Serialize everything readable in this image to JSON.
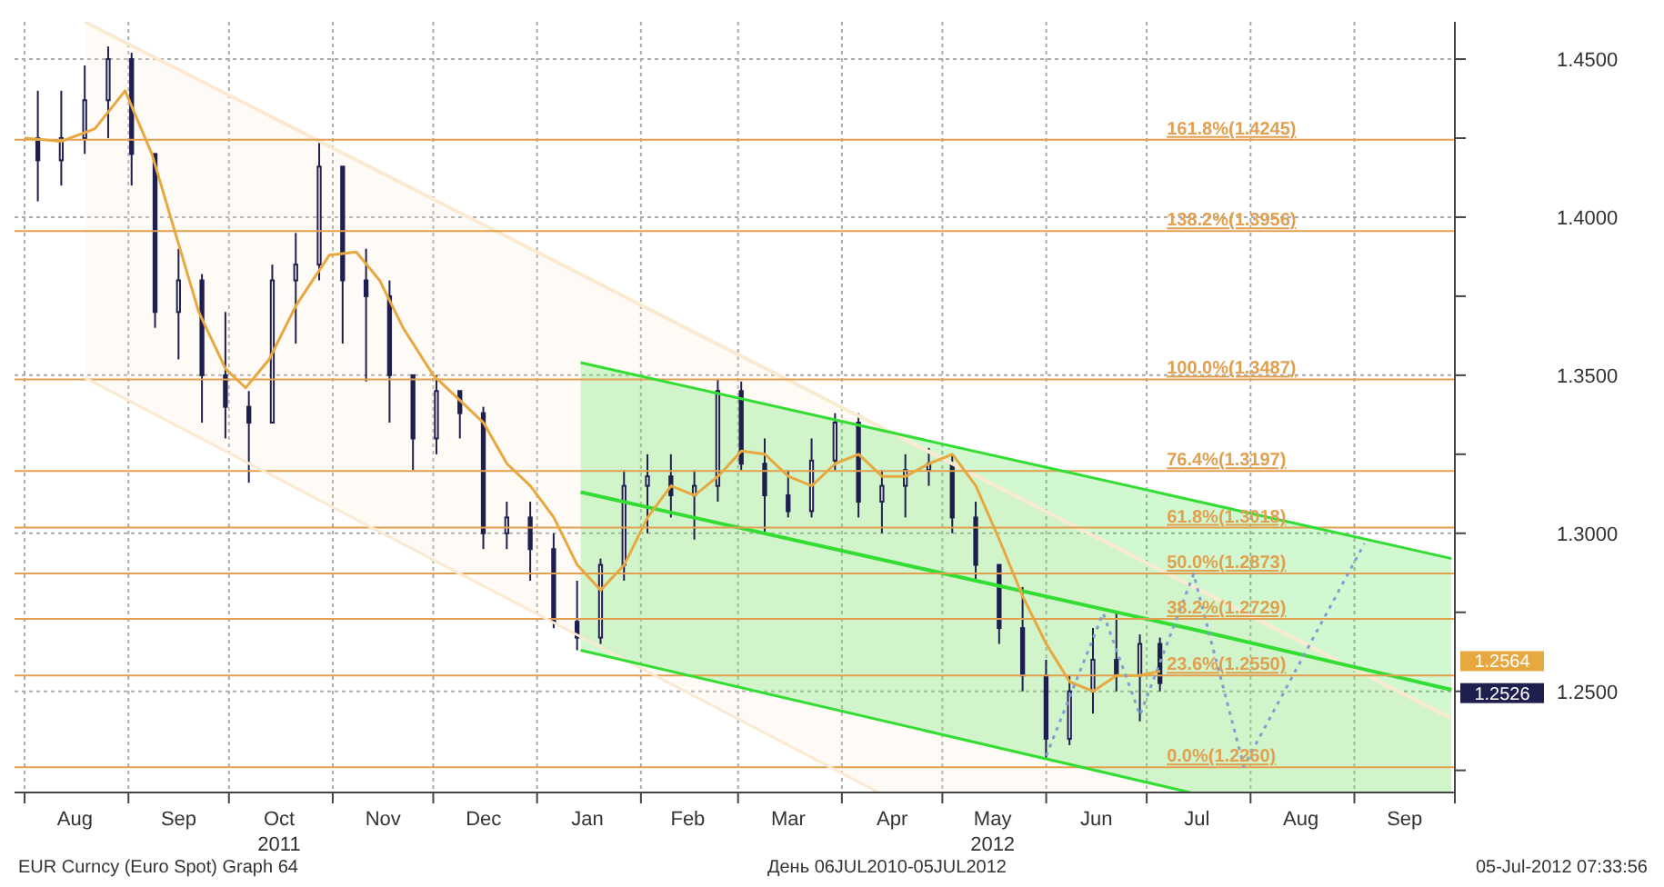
{
  "chart_data": {
    "type": "candlestick",
    "color": "#1f1f4f",
    "x": [
      "2011-08-05",
      "2011-08-12",
      "2011-08-19",
      "2011-08-26",
      "2011-09-02",
      "2011-09-09",
      "2011-09-16",
      "2011-09-23",
      "2011-09-30",
      "2011-10-07",
      "2011-10-14",
      "2011-10-21",
      "2011-10-28",
      "2011-11-04",
      "2011-11-11",
      "2011-11-18",
      "2011-11-25",
      "2011-12-02",
      "2011-12-09",
      "2011-12-16",
      "2011-12-23",
      "2011-12-30",
      "2012-01-06",
      "2012-01-13",
      "2012-01-20",
      "2012-01-27",
      "2012-02-03",
      "2012-02-10",
      "2012-02-17",
      "2012-02-24",
      "2012-03-02",
      "2012-03-09",
      "2012-03-16",
      "2012-03-23",
      "2012-03-30",
      "2012-04-06",
      "2012-04-13",
      "2012-04-20",
      "2012-04-27",
      "2012-05-04",
      "2012-05-11",
      "2012-05-18",
      "2012-05-25",
      "2012-06-01",
      "2012-06-08",
      "2012-06-15",
      "2012-06-22",
      "2012-06-29",
      "2012-07-05"
    ],
    "ohlc": [
      [
        1.425,
        1.44,
        1.405,
        1.418
      ],
      [
        1.418,
        1.44,
        1.41,
        1.425
      ],
      [
        1.425,
        1.448,
        1.42,
        1.437
      ],
      [
        1.437,
        1.454,
        1.425,
        1.45
      ],
      [
        1.45,
        1.452,
        1.41,
        1.42
      ],
      [
        1.42,
        1.42,
        1.365,
        1.37
      ],
      [
        1.37,
        1.39,
        1.355,
        1.38
      ],
      [
        1.38,
        1.382,
        1.335,
        1.35
      ],
      [
        1.35,
        1.37,
        1.33,
        1.34
      ],
      [
        1.34,
        1.345,
        1.316,
        1.335
      ],
      [
        1.335,
        1.385,
        1.335,
        1.38
      ],
      [
        1.38,
        1.395,
        1.36,
        1.385
      ],
      [
        1.385,
        1.424,
        1.38,
        1.416
      ],
      [
        1.416,
        1.416,
        1.36,
        1.38
      ],
      [
        1.38,
        1.39,
        1.348,
        1.375
      ],
      [
        1.375,
        1.38,
        1.335,
        1.35
      ],
      [
        1.35,
        1.35,
        1.32,
        1.33
      ],
      [
        1.33,
        1.35,
        1.325,
        1.345
      ],
      [
        1.345,
        1.345,
        1.33,
        1.338
      ],
      [
        1.338,
        1.34,
        1.295,
        1.3
      ],
      [
        1.3,
        1.31,
        1.295,
        1.305
      ],
      [
        1.305,
        1.31,
        1.285,
        1.295
      ],
      [
        1.295,
        1.3,
        1.27,
        1.272
      ],
      [
        1.272,
        1.285,
        1.263,
        1.267
      ],
      [
        1.267,
        1.292,
        1.265,
        1.29
      ],
      [
        1.29,
        1.32,
        1.285,
        1.315
      ],
      [
        1.315,
        1.325,
        1.3,
        1.318
      ],
      [
        1.318,
        1.325,
        1.305,
        1.312
      ],
      [
        1.312,
        1.32,
        1.298,
        1.315
      ],
      [
        1.315,
        1.3487,
        1.31,
        1.345
      ],
      [
        1.345,
        1.348,
        1.32,
        1.322
      ],
      [
        1.322,
        1.33,
        1.3,
        1.312
      ],
      [
        1.312,
        1.32,
        1.305,
        1.307
      ],
      [
        1.307,
        1.33,
        1.305,
        1.323
      ],
      [
        1.323,
        1.338,
        1.32,
        1.335
      ],
      [
        1.335,
        1.338,
        1.305,
        1.31
      ],
      [
        1.31,
        1.32,
        1.3,
        1.315
      ],
      [
        1.315,
        1.325,
        1.305,
        1.32
      ],
      [
        1.32,
        1.327,
        1.315,
        1.322
      ],
      [
        1.322,
        1.325,
        1.3,
        1.305
      ],
      [
        1.305,
        1.31,
        1.285,
        1.29
      ],
      [
        1.29,
        1.29,
        1.265,
        1.27
      ],
      [
        1.27,
        1.283,
        1.25,
        1.255
      ],
      [
        1.255,
        1.26,
        1.2286,
        1.235
      ],
      [
        1.235,
        1.255,
        1.233,
        1.25
      ],
      [
        1.25,
        1.27,
        1.243,
        1.26
      ],
      [
        1.26,
        1.275,
        1.25,
        1.255
      ],
      [
        1.255,
        1.268,
        1.2405,
        1.265
      ],
      [
        1.265,
        1.267,
        1.25,
        1.2526
      ]
    ],
    "series": [
      {
        "type": "line",
        "color": "#fbead2",
        "x": [
          "2011-08-19",
          "2012-04-12",
          "2012-09-30"
        ],
        "values": [
          1.4618,
          1.3339,
          1.2414
        ],
        "lower": [
          1.3492,
          1.218,
          1.218
        ],
        "upper": [
          1.4618,
          1.3339,
          1.2414
        ]
      },
      {
        "type": "line",
        "color": "#fbead2",
        "x": [
          "2011-08-19",
          "2012-04-12"
        ],
        "values": [
          1.3492,
          1.218
        ]
      },
      {
        "type": "line",
        "color": "#33dd33",
        "x": [
          "2012-01-14",
          "2012-07-14",
          "2012-09-30"
        ],
        "values": [
          1.313,
          1.2698,
          1.2505
        ],
        "lower": [
          1.263,
          1.218,
          1.218
        ],
        "upper": [
          1.354,
          1.3108,
          1.292
        ]
      },
      {
        "type": "line",
        "color": "#33dd33",
        "x": [
          "2012-01-14",
          "2012-09-30"
        ],
        "values": [
          1.354,
          1.292
        ]
      },
      {
        "type": "line",
        "color": "#33dd33",
        "x": [
          "2012-01-14",
          "2012-07-14"
        ],
        "values": [
          1.263,
          1.218
        ]
      },
      {
        "type": "line",
        "color": "#e8a840",
        "x": [
          "2011-08-01",
          "2011-08-12",
          "2011-08-22",
          "2011-08-31",
          "2011-09-08",
          "2011-09-15",
          "2011-09-22",
          "2011-09-30",
          "2011-10-06",
          "2011-10-13",
          "2011-10-21",
          "2011-10-31",
          "2011-11-08",
          "2011-11-15",
          "2011-11-22",
          "2011-12-01",
          "2011-12-09",
          "2011-12-16",
          "2011-12-23",
          "2011-12-30",
          "2012-01-06",
          "2012-01-13",
          "2012-01-20",
          "2012-01-27",
          "2012-02-03",
          "2012-02-10",
          "2012-02-17",
          "2012-02-24",
          "2012-03-02",
          "2012-03-09",
          "2012-03-16",
          "2012-03-23",
          "2012-03-30",
          "2012-04-06",
          "2012-04-13",
          "2012-04-20",
          "2012-04-27",
          "2012-05-04",
          "2012-05-11",
          "2012-05-18",
          "2012-05-25",
          "2012-06-01",
          "2012-06-08",
          "2012-06-15",
          "2012-06-22",
          "2012-06-29",
          "2012-07-05"
        ],
        "values": [
          1.425,
          1.424,
          1.428,
          1.44,
          1.42,
          1.395,
          1.37,
          1.352,
          1.346,
          1.355,
          1.372,
          1.388,
          1.389,
          1.38,
          1.365,
          1.35,
          1.342,
          1.335,
          1.322,
          1.315,
          1.305,
          1.29,
          1.282,
          1.29,
          1.305,
          1.315,
          1.312,
          1.318,
          1.326,
          1.325,
          1.318,
          1.315,
          1.322,
          1.325,
          1.318,
          1.318,
          1.322,
          1.325,
          1.315,
          1.298,
          1.28,
          1.265,
          1.253,
          1.25,
          1.255,
          1.255,
          1.2564
        ]
      },
      {
        "type": "line",
        "color": "#7f9fd0",
        "line_style": "dotted",
        "x": [
          "2012-06-01",
          "2012-06-18",
          "2012-06-29",
          "2012-07-15",
          "2012-07-30",
          "2012-09-04"
        ],
        "values": [
          1.2296,
          1.2747,
          1.2425,
          1.2871,
          1.2263,
          1.2968
        ]
      }
    ],
    "xlim": [
      "2011-07-29",
      "2012-10-01"
    ],
    "xticks": [
      {
        "value": "2011-08-01",
        "label": null
      },
      {
        "value": "2011-08-16",
        "label": "Aug"
      },
      {
        "value": "2011-09-01",
        "label": null
      },
      {
        "value": "2011-09-16",
        "label": "Sep"
      },
      {
        "value": "2011-10-01",
        "label": null
      },
      {
        "value": "2011-10-16",
        "label": "Oct\n2011"
      },
      {
        "value": "2011-11-01",
        "label": null
      },
      {
        "value": "2011-11-16",
        "label": "Nov"
      },
      {
        "value": "2011-12-01",
        "label": null
      },
      {
        "value": "2011-12-16",
        "label": "Dec"
      },
      {
        "value": "2012-01-01",
        "label": null
      },
      {
        "value": "2012-01-16",
        "label": "Jan"
      },
      {
        "value": "2012-02-01",
        "label": null
      },
      {
        "value": "2012-02-15",
        "label": "Feb"
      },
      {
        "value": "2012-03-01",
        "label": null
      },
      {
        "value": "2012-03-16",
        "label": "Mar"
      },
      {
        "value": "2012-04-01",
        "label": null
      },
      {
        "value": "2012-04-16",
        "label": "Apr"
      },
      {
        "value": "2012-05-01",
        "label": null
      },
      {
        "value": "2012-05-16",
        "label": "May\n2012"
      },
      {
        "value": "2012-06-01",
        "label": null
      },
      {
        "value": "2012-06-16",
        "label": "Jun"
      },
      {
        "value": "2012-07-01",
        "label": null
      },
      {
        "value": "2012-07-16",
        "label": "Jul"
      },
      {
        "value": "2012-08-01",
        "label": null
      },
      {
        "value": "2012-08-16",
        "label": "Aug"
      },
      {
        "value": "2012-09-01",
        "label": null
      },
      {
        "value": "2012-09-16",
        "label": "Sep"
      },
      {
        "value": "2012-10-01",
        "label": null
      }
    ],
    "ylim": [
      1.218,
      1.4618
    ],
    "yticks": [
      {
        "value": 1.225,
        "label": null
      },
      {
        "value": 1.25,
        "label": "1.2500"
      },
      {
        "value": 1.275,
        "label": null
      },
      {
        "value": 1.3,
        "label": "1.3000"
      },
      {
        "value": 1.325,
        "label": null
      },
      {
        "value": 1.35,
        "label": "1.3500"
      },
      {
        "value": 1.375,
        "label": null
      },
      {
        "value": 1.4,
        "label": "1.4000"
      },
      {
        "value": 1.425,
        "label": null
      },
      {
        "value": 1.45,
        "label": "1.4500"
      }
    ],
    "grid": true,
    "legend": false,
    "marker": "none",
    "line_style": "solid",
    "ref_lines": [
      {
        "axis": "y",
        "value": 1.4245,
        "label": "161.8%(1.4245)",
        "color": "#e0a050"
      },
      {
        "axis": "y",
        "value": 1.3956,
        "label": "138.2%(1.3956)",
        "color": "#e0a050"
      },
      {
        "axis": "y",
        "value": 1.3487,
        "label": "100.0%(1.3487)",
        "color": "#e0a050"
      },
      {
        "axis": "y",
        "value": 1.3197,
        "label": "76.4%(1.3197)",
        "color": "#e0a050"
      },
      {
        "axis": "y",
        "value": 1.3018,
        "label": "61.8%(1.3018)",
        "color": "#e0a050"
      },
      {
        "axis": "y",
        "value": 1.2873,
        "label": "50.0%(1.2873)",
        "color": "#e0a050"
      },
      {
        "axis": "y",
        "value": 1.2729,
        "label": "38.2%(1.2729)",
        "color": "#e0a050"
      },
      {
        "axis": "y",
        "value": 1.255,
        "label": "23.6%(1.2550)",
        "color": "#e0a050"
      },
      {
        "axis": "y",
        "value": 1.226,
        "label": "0.0%(1.2260)",
        "color": "#e0a050"
      }
    ],
    "annotations": [
      "EUR Curncy (Euro Spot) Graph 64",
      "День 06JUL2010-05JUL2012",
      "05-Jul-2012 07:33:56",
      {
        "text": "1.2564",
        "x": "2012-10-01",
        "y": 1.2564
      },
      {
        "text": "1.2526",
        "x": "2012-10-01",
        "y": 1.2526
      }
    ]
  }
}
